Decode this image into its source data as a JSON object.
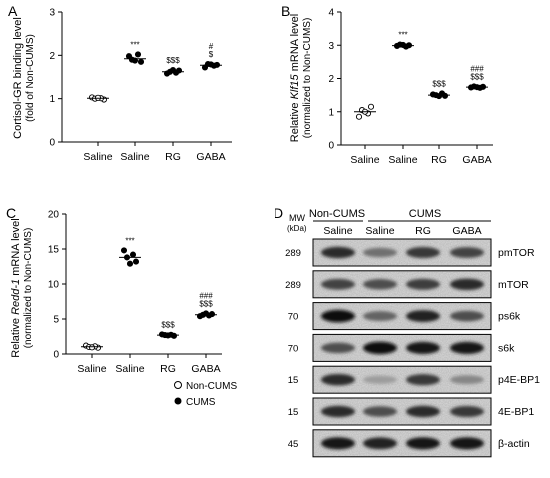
{
  "panels": {
    "A": {
      "letter": "A",
      "ylabel": "Cortisol-GR binding level",
      "ylabel2": "(fold of Non-CUMS)"
    },
    "B": {
      "letter": "B",
      "ylabel_pre": "Relative ",
      "ylabel_gene": "Klf15",
      "ylabel_post": " mRNA level",
      "ylabel2": "(normalized to Non-CUMS)"
    },
    "C": {
      "letter": "C",
      "ylabel_pre": "Relative ",
      "ylabel_gene": "Redd-1",
      "ylabel_post": " mRNA level",
      "ylabel2": "(normalized to Non-CUMS)"
    },
    "D": {
      "letter": "D"
    }
  },
  "legend": {
    "non_cums": "Non-CUMS",
    "cums": "CUMS"
  },
  "blot": {
    "mw_header": "MW",
    "mw_unit": "(kDa)",
    "group_non_cums": "Non-CUMS",
    "group_cums": "CUMS",
    "lanes": [
      "Saline",
      "Saline",
      "RG",
      "GABA"
    ],
    "rows": [
      {
        "protein": "pmTOR",
        "mw": "289"
      },
      {
        "protein": "mTOR",
        "mw": "289"
      },
      {
        "protein": "ps6k",
        "mw": "70"
      },
      {
        "protein": "s6k",
        "mw": "70"
      },
      {
        "protein": "p4E-BP1",
        "mw": "15"
      },
      {
        "protein": "4E-BP1",
        "mw": "15"
      },
      {
        "protein": "β-actin",
        "mw": "45"
      }
    ]
  },
  "chart_data": [
    {
      "type": "scatter",
      "panel": "A",
      "categories": [
        "Saline",
        "Saline",
        "RG",
        "GABA"
      ],
      "groups": [
        "Non-CUMS",
        "CUMS",
        "CUMS",
        "CUMS"
      ],
      "ylim": [
        0,
        3
      ],
      "yticks": [
        "0",
        "1",
        "2",
        "3"
      ],
      "series": [
        {
          "values": [
            [
              1.03,
              0.98,
              1.0,
              1.01,
              1.02
            ],
            [
              1.98,
              1.85,
              1.9,
              2.02,
              1.88
            ],
            [
              1.58,
              1.65,
              1.62,
              1.6,
              1.66
            ],
            [
              1.72,
              1.78,
              1.8,
              1.76,
              1.79
            ]
          ]
        }
      ],
      "means": [
        1.01,
        1.92,
        1.62,
        1.77
      ],
      "annotations": [
        [],
        [
          "***"
        ],
        [
          "$$$"
        ],
        [
          "#",
          "$"
        ]
      ]
    },
    {
      "type": "scatter",
      "panel": "B",
      "categories": [
        "Saline",
        "Saline",
        "RG",
        "GABA"
      ],
      "groups": [
        "Non-CUMS",
        "CUMS",
        "CUMS",
        "CUMS"
      ],
      "ylim": [
        0,
        4
      ],
      "yticks": [
        "0",
        "1",
        "2",
        "3",
        "4"
      ],
      "series": [
        {
          "values": [
            [
              0.85,
              1.15,
              1.05,
              0.95,
              1.0
            ],
            [
              2.98,
              3.0,
              3.02,
              2.96,
              3.01
            ],
            [
              1.52,
              1.48,
              1.5,
              1.55,
              1.47
            ],
            [
              1.73,
              1.75,
              1.76,
              1.72,
              1.74
            ]
          ]
        }
      ],
      "means": [
        1.0,
        2.99,
        1.5,
        1.74
      ],
      "annotations": [
        [],
        [
          "***"
        ],
        [
          "$$$"
        ],
        [
          "###",
          "$$$"
        ]
      ]
    },
    {
      "type": "scatter",
      "panel": "C",
      "categories": [
        "Saline",
        "Saline",
        "RG",
        "GABA"
      ],
      "groups": [
        "Non-CUMS",
        "CUMS",
        "CUMS",
        "CUMS"
      ],
      "ylim": [
        0,
        20
      ],
      "yticks": [
        "0",
        "5",
        "10",
        "15",
        "20"
      ],
      "series": [
        {
          "values": [
            [
              1.2,
              0.9,
              1.0,
              1.1,
              0.95
            ],
            [
              14.8,
              13.2,
              13.8,
              14.2,
              12.9
            ],
            [
              2.8,
              2.6,
              2.7,
              2.75,
              2.65
            ],
            [
              5.4,
              5.7,
              5.6,
              5.5,
              5.8
            ]
          ]
        }
      ],
      "means": [
        1.03,
        13.8,
        2.7,
        5.6
      ],
      "annotations": [
        [],
        [
          "***"
        ],
        [
          "$$$"
        ],
        [
          "###",
          "$$$"
        ]
      ]
    }
  ]
}
